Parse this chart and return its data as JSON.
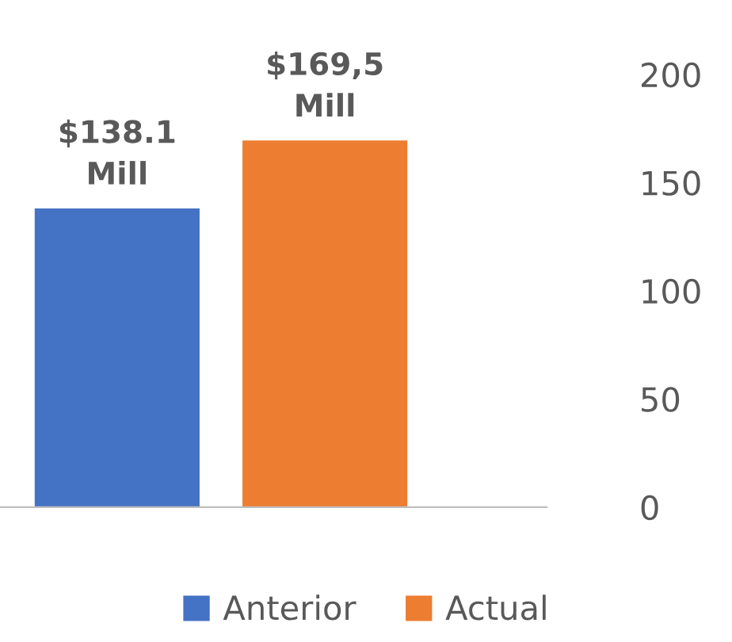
{
  "chart_data": {
    "type": "bar",
    "categories": [
      null
    ],
    "series": [
      {
        "name": "Anterior",
        "color": "#4472c4",
        "values": [
          138.1
        ],
        "value_labels": [
          "$138.1\nMill"
        ]
      },
      {
        "name": "Actual",
        "color": "#ed7d31",
        "values": [
          169.5
        ],
        "value_labels": [
          "$169,5\nMill"
        ]
      }
    ],
    "ylim": [
      0,
      200
    ],
    "yticks": [
      0,
      50,
      100,
      150,
      200
    ],
    "grid": false,
    "legend": "bottom"
  }
}
